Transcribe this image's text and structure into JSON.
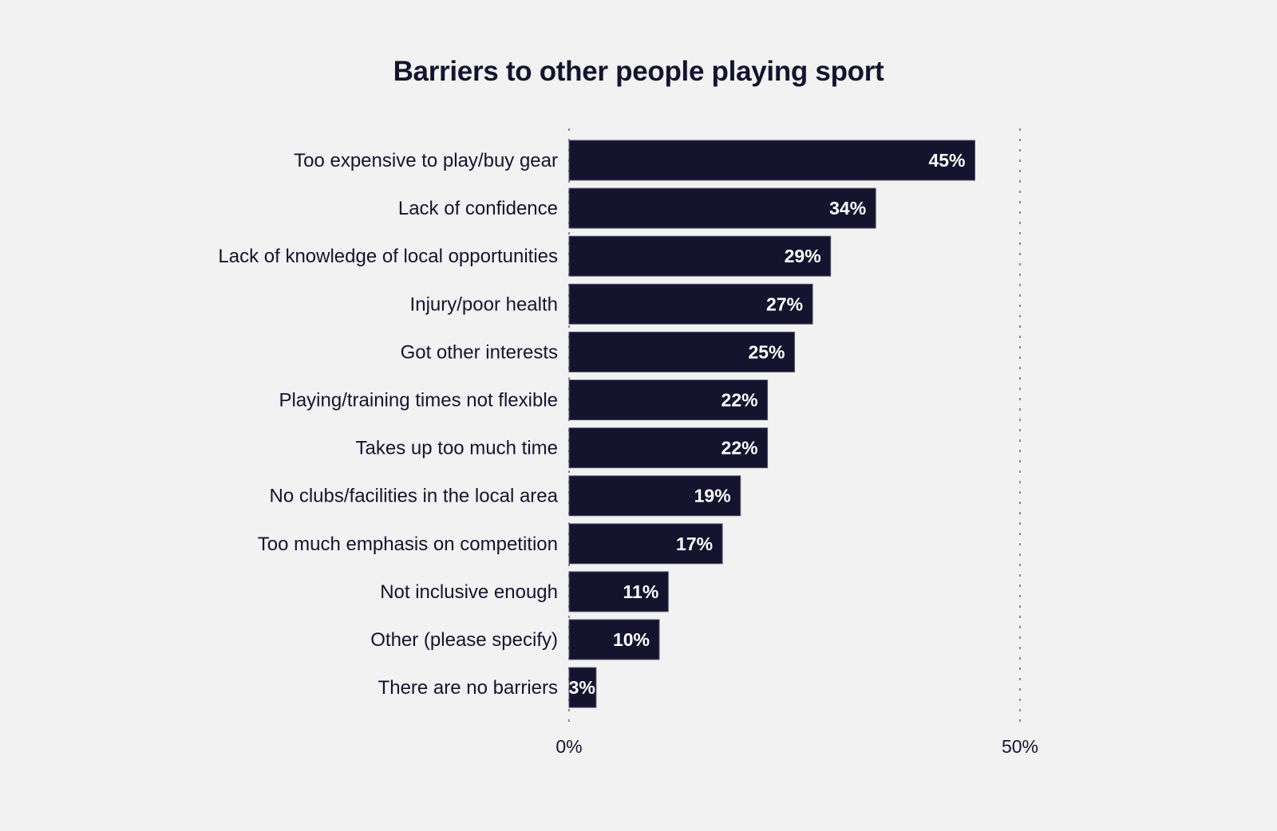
{
  "chart_data": {
    "type": "bar",
    "orientation": "horizontal",
    "title": "Barriers to other people playing sport",
    "xlabel": "",
    "ylabel": "",
    "xlim": [
      0,
      50
    ],
    "x_ticks": [
      "0%",
      "50%"
    ],
    "grid": "dotted vertical lines at 0% and 50%",
    "categories": [
      "Too expensive to play/buy gear",
      "Lack of confidence",
      "Lack of knowledge of local opportunities",
      "Injury/poor health",
      "Got other interests",
      "Playing/training times not flexible",
      "Takes up too much time",
      "No clubs/facilities in the local area",
      "Too much emphasis on competition",
      "Not inclusive enough",
      "Other (please specify)",
      "There are no barriers"
    ],
    "values": [
      45,
      34,
      29,
      27,
      25,
      22,
      22,
      19,
      17,
      11,
      10,
      3
    ],
    "data_labels": [
      "45%",
      "34%",
      "29%",
      "27%",
      "25%",
      "22%",
      "22%",
      "19%",
      "17%",
      "11%",
      "10%",
      "3%"
    ],
    "colors": {
      "bar": "#16132f",
      "background": "#f1f2f1",
      "label": "#ffffff"
    }
  }
}
